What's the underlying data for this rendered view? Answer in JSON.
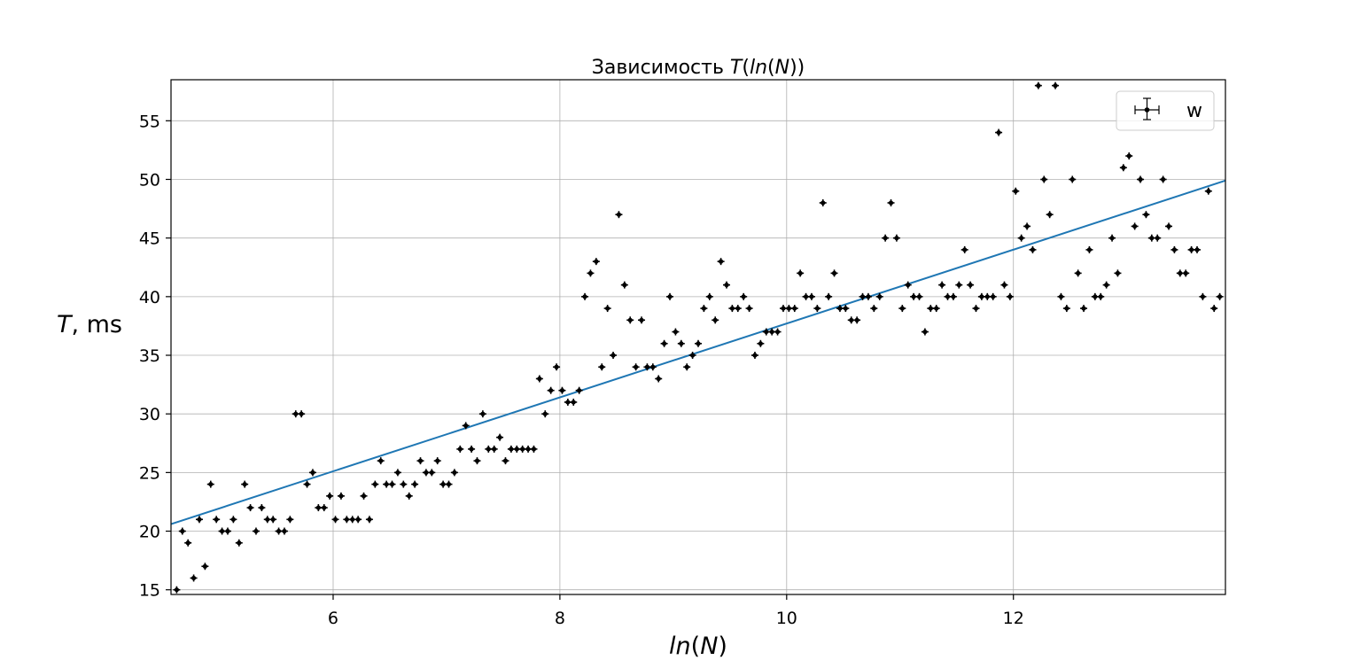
{
  "chart_data": {
    "type": "scatter",
    "title": {
      "prefix": "Зависимость ",
      "italic": "T",
      "middle": "(",
      "italic2": "ln",
      "middle2": "(",
      "italic3": "N",
      "suffix": "))"
    },
    "xlabel": {
      "italic": "ln",
      "middle": "(",
      "italic2": "N",
      "suffix": ")"
    },
    "ylabel": {
      "italic": "T",
      "suffix": ", ms"
    },
    "xlim": [
      4.57,
      13.87
    ],
    "ylim": [
      14.6,
      58.5
    ],
    "xticks": [
      6,
      8,
      10,
      12
    ],
    "yticks": [
      15,
      20,
      25,
      30,
      35,
      40,
      45,
      50,
      55
    ],
    "grid": true,
    "legend": {
      "position": "top-right",
      "entries": [
        "w"
      ]
    },
    "fit_line": {
      "x": [
        4.57,
        13.87
      ],
      "y": [
        20.6,
        49.9
      ],
      "color": "#1f77b4"
    },
    "marker_color": "#000000",
    "points": [
      [
        4.62,
        15
      ],
      [
        4.67,
        20
      ],
      [
        4.72,
        19
      ],
      [
        4.77,
        16
      ],
      [
        4.82,
        21
      ],
      [
        4.87,
        17
      ],
      [
        4.92,
        24
      ],
      [
        4.97,
        21
      ],
      [
        5.02,
        20
      ],
      [
        5.07,
        20
      ],
      [
        5.12,
        21
      ],
      [
        5.17,
        19
      ],
      [
        5.22,
        24
      ],
      [
        5.27,
        22
      ],
      [
        5.32,
        20
      ],
      [
        5.37,
        22
      ],
      [
        5.42,
        21
      ],
      [
        5.47,
        21
      ],
      [
        5.52,
        20
      ],
      [
        5.57,
        20
      ],
      [
        5.62,
        21
      ],
      [
        5.67,
        30
      ],
      [
        5.72,
        30
      ],
      [
        5.77,
        24
      ],
      [
        5.82,
        25
      ],
      [
        5.87,
        22
      ],
      [
        5.92,
        22
      ],
      [
        5.97,
        23
      ],
      [
        6.02,
        21
      ],
      [
        6.07,
        23
      ],
      [
        6.12,
        21
      ],
      [
        6.17,
        21
      ],
      [
        6.22,
        21
      ],
      [
        6.27,
        23
      ],
      [
        6.32,
        21
      ],
      [
        6.37,
        24
      ],
      [
        6.42,
        26
      ],
      [
        6.47,
        24
      ],
      [
        6.52,
        24
      ],
      [
        6.57,
        25
      ],
      [
        6.62,
        24
      ],
      [
        6.67,
        23
      ],
      [
        6.72,
        24
      ],
      [
        6.77,
        26
      ],
      [
        6.82,
        25
      ],
      [
        6.87,
        25
      ],
      [
        6.92,
        26
      ],
      [
        6.97,
        24
      ],
      [
        7.02,
        24
      ],
      [
        7.07,
        25
      ],
      [
        7.12,
        27
      ],
      [
        7.17,
        29
      ],
      [
        7.22,
        27
      ],
      [
        7.27,
        26
      ],
      [
        7.32,
        30
      ],
      [
        7.37,
        27
      ],
      [
        7.42,
        27
      ],
      [
        7.47,
        28
      ],
      [
        7.52,
        26
      ],
      [
        7.57,
        27
      ],
      [
        7.62,
        27
      ],
      [
        7.67,
        27
      ],
      [
        7.72,
        27
      ],
      [
        7.77,
        27
      ],
      [
        7.82,
        33
      ],
      [
        7.87,
        30
      ],
      [
        7.92,
        32
      ],
      [
        7.97,
        34
      ],
      [
        8.02,
        32
      ],
      [
        8.07,
        31
      ],
      [
        8.12,
        31
      ],
      [
        8.17,
        32
      ],
      [
        8.22,
        40
      ],
      [
        8.27,
        42
      ],
      [
        8.32,
        43
      ],
      [
        8.37,
        34
      ],
      [
        8.42,
        39
      ],
      [
        8.47,
        35
      ],
      [
        8.52,
        47
      ],
      [
        8.57,
        41
      ],
      [
        8.62,
        38
      ],
      [
        8.67,
        34
      ],
      [
        8.72,
        38
      ],
      [
        8.77,
        34
      ],
      [
        8.82,
        34
      ],
      [
        8.87,
        33
      ],
      [
        8.92,
        36
      ],
      [
        8.97,
        40
      ],
      [
        9.02,
        37
      ],
      [
        9.07,
        36
      ],
      [
        9.12,
        34
      ],
      [
        9.17,
        35
      ],
      [
        9.22,
        36
      ],
      [
        9.27,
        39
      ],
      [
        9.32,
        40
      ],
      [
        9.37,
        38
      ],
      [
        9.42,
        43
      ],
      [
        9.47,
        41
      ],
      [
        9.52,
        39
      ],
      [
        9.57,
        39
      ],
      [
        9.62,
        40
      ],
      [
        9.67,
        39
      ],
      [
        9.72,
        35
      ],
      [
        9.77,
        36
      ],
      [
        9.82,
        37
      ],
      [
        9.87,
        37
      ],
      [
        9.92,
        37
      ],
      [
        9.97,
        39
      ],
      [
        10.02,
        39
      ],
      [
        10.07,
        39
      ],
      [
        10.12,
        42
      ],
      [
        10.17,
        40
      ],
      [
        10.22,
        40
      ],
      [
        10.27,
        39
      ],
      [
        10.32,
        48
      ],
      [
        10.37,
        40
      ],
      [
        10.42,
        42
      ],
      [
        10.47,
        39
      ],
      [
        10.52,
        39
      ],
      [
        10.57,
        38
      ],
      [
        10.62,
        38
      ],
      [
        10.67,
        40
      ],
      [
        10.72,
        40
      ],
      [
        10.77,
        39
      ],
      [
        10.82,
        40
      ],
      [
        10.87,
        45
      ],
      [
        10.92,
        48
      ],
      [
        10.97,
        45
      ],
      [
        11.02,
        39
      ],
      [
        11.07,
        41
      ],
      [
        11.12,
        40
      ],
      [
        11.17,
        40
      ],
      [
        11.22,
        37
      ],
      [
        11.27,
        39
      ],
      [
        11.32,
        39
      ],
      [
        11.37,
        41
      ],
      [
        11.42,
        40
      ],
      [
        11.47,
        40
      ],
      [
        11.52,
        41
      ],
      [
        11.57,
        44
      ],
      [
        11.62,
        41
      ],
      [
        11.67,
        39
      ],
      [
        11.72,
        40
      ],
      [
        11.77,
        40
      ],
      [
        11.82,
        40
      ],
      [
        11.87,
        54
      ],
      [
        11.92,
        41
      ],
      [
        11.97,
        40
      ],
      [
        12.02,
        49
      ],
      [
        12.07,
        45
      ],
      [
        12.12,
        46
      ],
      [
        12.17,
        44
      ],
      [
        12.22,
        58
      ],
      [
        12.27,
        50
      ],
      [
        12.32,
        47
      ],
      [
        12.37,
        58
      ],
      [
        12.42,
        40
      ],
      [
        12.47,
        39
      ],
      [
        12.52,
        50
      ],
      [
        12.57,
        42
      ],
      [
        12.62,
        39
      ],
      [
        12.67,
        44
      ],
      [
        12.72,
        40
      ],
      [
        12.77,
        40
      ],
      [
        12.82,
        41
      ],
      [
        12.87,
        45
      ],
      [
        12.92,
        42
      ],
      [
        12.97,
        51
      ],
      [
        13.02,
        52
      ],
      [
        13.07,
        46
      ],
      [
        13.12,
        50
      ],
      [
        13.17,
        47
      ],
      [
        13.22,
        45
      ],
      [
        13.27,
        45
      ],
      [
        13.32,
        50
      ],
      [
        13.37,
        46
      ],
      [
        13.42,
        44
      ],
      [
        13.47,
        42
      ],
      [
        13.52,
        42
      ],
      [
        13.57,
        44
      ],
      [
        13.62,
        44
      ],
      [
        13.67,
        40
      ],
      [
        13.72,
        49
      ],
      [
        13.77,
        39
      ],
      [
        13.82,
        40
      ]
    ]
  }
}
